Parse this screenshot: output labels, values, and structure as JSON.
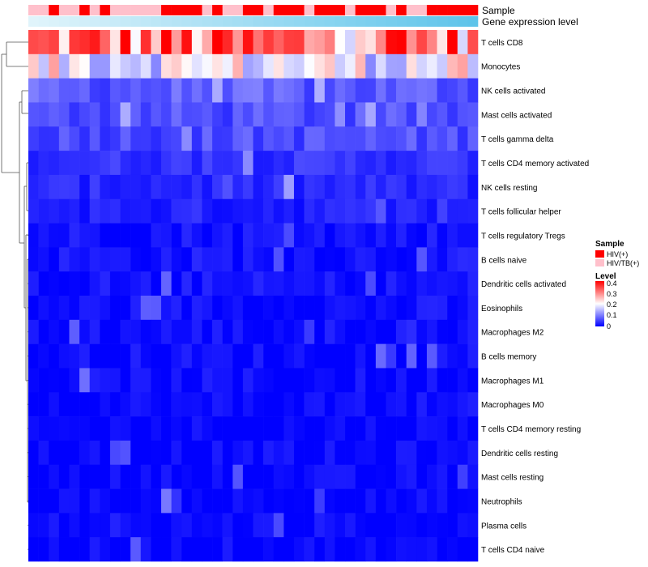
{
  "chart_data": {
    "type": "heatmap",
    "title": "",
    "annotation_tracks": [
      {
        "name": "Sample",
        "label": "Sample"
      },
      {
        "name": "Gene expression level",
        "label": "Gene expression level"
      }
    ],
    "rows": [
      "T cells CD8",
      "Monocytes",
      "NK cells activated",
      "Mast cells activated",
      "T cells gamma delta",
      "T cells CD4 memory activated",
      "NK cells resting",
      "T cells follicular helper",
      "T cells regulatory  Tregs",
      "B cells naive",
      "Dendritic cells activated",
      "Eosinophils",
      "Macrophages M2",
      "B cells memory",
      "Macrophages M1",
      "Macrophages M0",
      "T cells CD4 memory resting",
      "Dendritic cells resting",
      "Mast cells resting",
      "Neutrophils",
      "Plasma cells",
      "T cells CD4 naive"
    ],
    "row_means": [
      0.3,
      0.19,
      0.07,
      0.06,
      0.06,
      0.04,
      0.03,
      0.025,
      0.015,
      0.015,
      0.012,
      0.01,
      0.01,
      0.008,
      0.006,
      0.005,
      0.003,
      0.003,
      0.002,
      0.001,
      0.005,
      0.002
    ],
    "n_samples": 44,
    "sample_groups": [
      "HIV/TB(+)",
      "HIV/TB(+)",
      "HIV(+)",
      "HIV/TB(+)",
      "HIV/TB(+)",
      "HIV(+)",
      "HIV/TB(+)",
      "HIV(+)",
      "HIV/TB(+)",
      "HIV/TB(+)",
      "HIV/TB(+)",
      "HIV/TB(+)",
      "HIV/TB(+)",
      "HIV(+)",
      "HIV(+)",
      "HIV(+)",
      "HIV(+)",
      "HIV/TB(+)",
      "HIV(+)",
      "HIV/TB(+)",
      "HIV/TB(+)",
      "HIV(+)",
      "HIV(+)",
      "HIV/TB(+)",
      "HIV(+)",
      "HIV(+)",
      "HIV(+)",
      "HIV/TB(+)",
      "HIV(+)",
      "HIV(+)",
      "HIV(+)",
      "HIV/TB(+)",
      "HIV(+)",
      "HIV(+)",
      "HIV(+)",
      "HIV/TB(+)",
      "HIV(+)",
      "HIV/TB(+)",
      "HIV/TB(+)",
      "HIV(+)",
      "HIV(+)",
      "HIV(+)",
      "HIV(+)",
      "HIV(+)"
    ],
    "legend": {
      "sample_title": "Sample",
      "sample_entries": [
        {
          "label": "HIV(+)",
          "color": "#ff0000"
        },
        {
          "label": "HIV/TB(+)",
          "color": "#ffc0cb"
        }
      ],
      "level_title": "Level",
      "level_ticks": [
        "0.4",
        "0.3",
        "0.2",
        "0.1",
        "0"
      ],
      "level_range": [
        0,
        0.4
      ]
    },
    "colors": {
      "low": "#0000ff",
      "mid": "#ffffff",
      "high": "#ff0000",
      "expr_low": "#e0f4fb",
      "expr_high": "#5ec4ea"
    }
  }
}
